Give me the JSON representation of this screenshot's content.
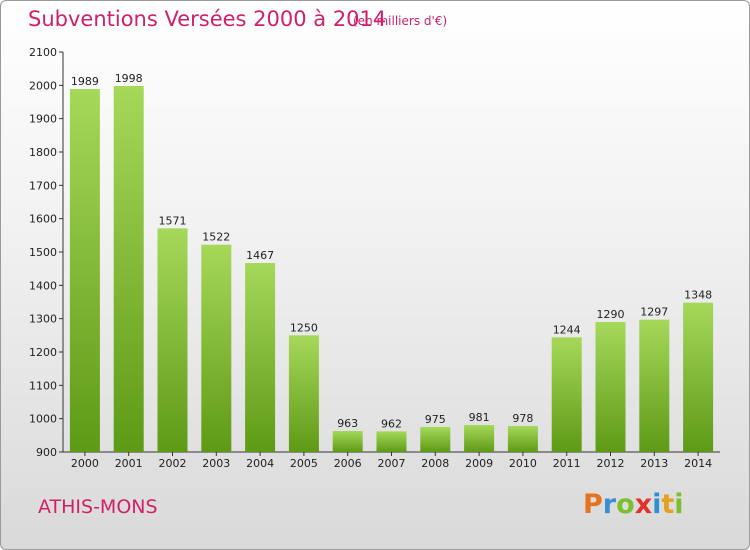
{
  "title": "Subventions Versées 2000 à 2014",
  "subtitle": "(en milliers d'€)",
  "commune": "ATHIS-MONS",
  "logo": {
    "letters": [
      "P",
      "r",
      "o",
      "x",
      "i",
      "t",
      "i"
    ]
  },
  "colors": {
    "title": "#d11f6a",
    "bar_top": "#a6d85a",
    "bar_bottom": "#5e9a16"
  },
  "chart_data": {
    "type": "bar",
    "categories": [
      "2000",
      "2001",
      "2002",
      "2003",
      "2004",
      "2005",
      "2006",
      "2007",
      "2008",
      "2009",
      "2010",
      "2011",
      "2012",
      "2013",
      "2014"
    ],
    "values": [
      1989,
      1998,
      1571,
      1522,
      1467,
      1250,
      963,
      962,
      975,
      981,
      978,
      1244,
      1290,
      1297,
      1348
    ],
    "title": "Subventions Versées 2000 à 2014",
    "subtitle": "(en milliers d'€)",
    "xlabel": "",
    "ylabel": "",
    "ylim": [
      900,
      2100
    ],
    "yticks": [
      900,
      1000,
      1100,
      1200,
      1300,
      1400,
      1500,
      1600,
      1700,
      1800,
      1900,
      2000,
      2100
    ],
    "grid": false,
    "legend": "none"
  }
}
